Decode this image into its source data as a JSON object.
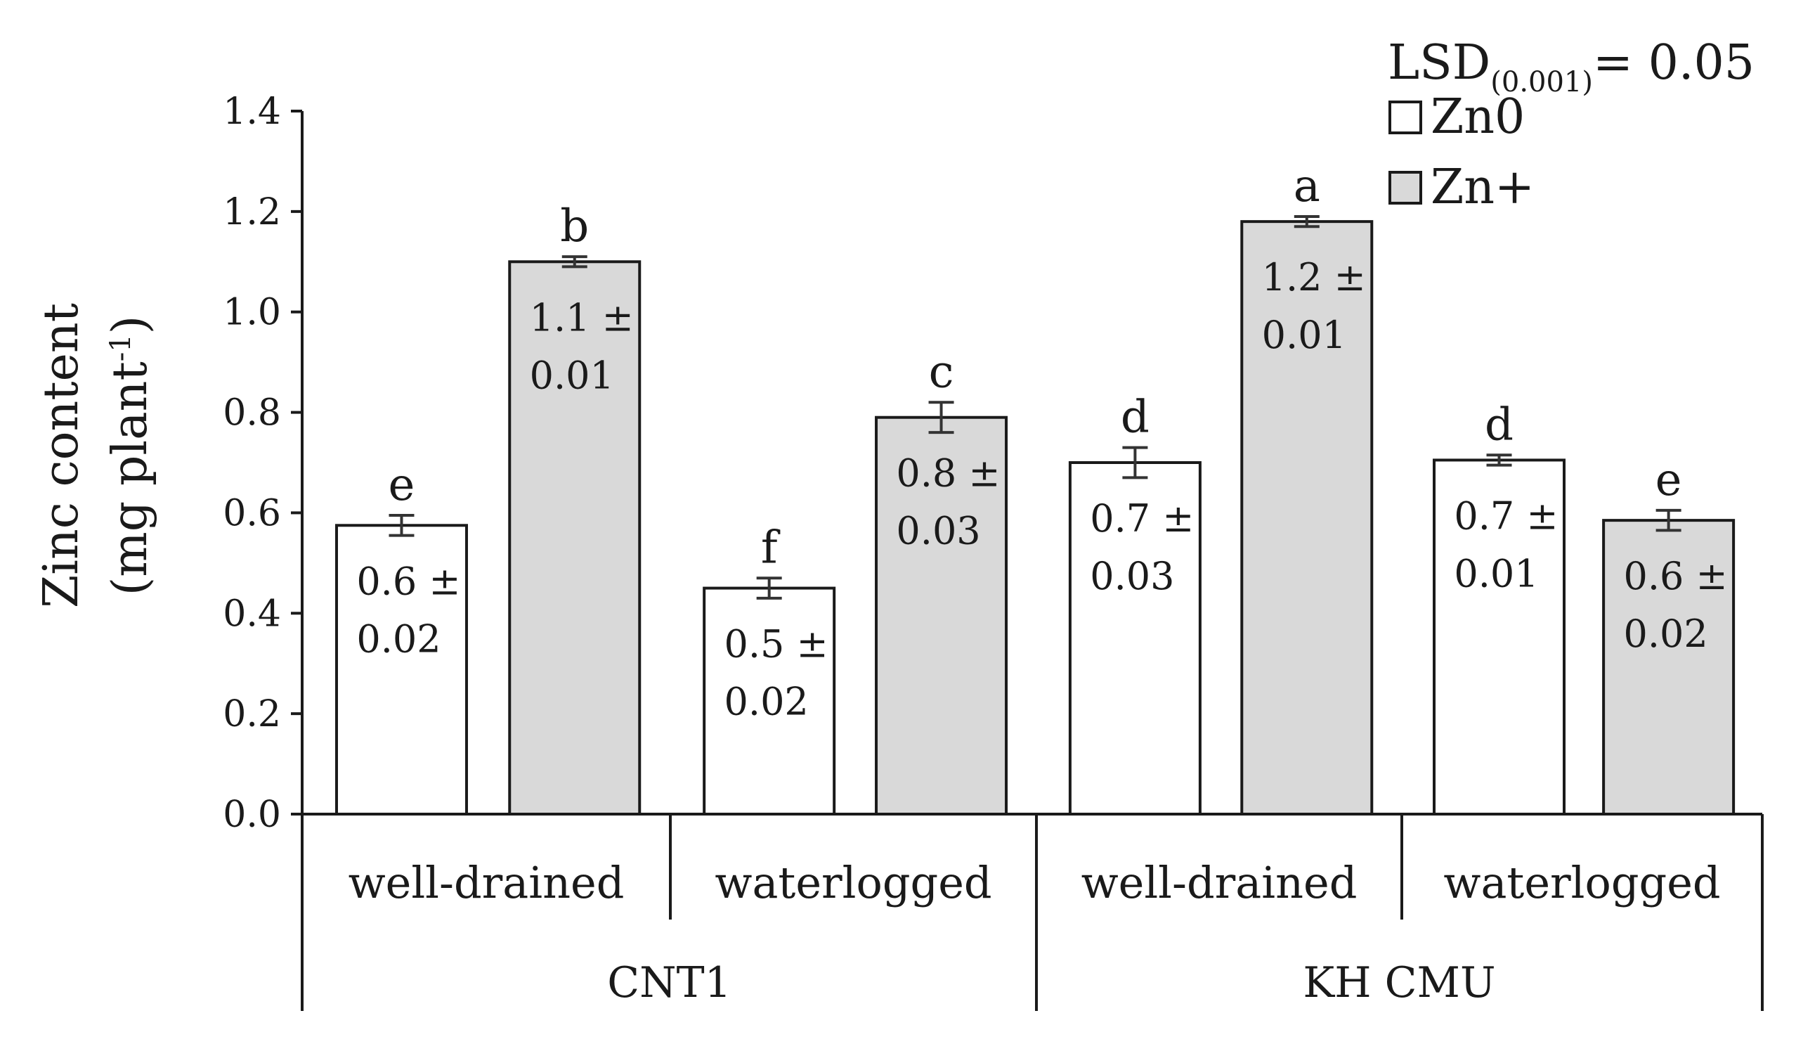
{
  "chart_data": {
    "type": "bar",
    "ylabel_line1": "Zinc content",
    "ylabel_line2_main": "(mg plant",
    "ylabel_line2_sup": "-1",
    "ylabel_line2_end": ")",
    "ylim": [
      0,
      1.4
    ],
    "yticks": [
      "0.0",
      "0.2",
      "0.4",
      "0.6",
      "0.8",
      "1.0",
      "1.2",
      "1.4"
    ],
    "groups": [
      {
        "name": "CNT1",
        "conditions": [
          "well-drained",
          "waterlogged"
        ]
      },
      {
        "name": "KH CMU",
        "conditions": [
          "well-drained",
          "waterlogged"
        ]
      }
    ],
    "series": [
      {
        "name": "Zn0",
        "color": "#ffffff"
      },
      {
        "name": "Zn+",
        "color": "#d9d9d9"
      }
    ],
    "bars": [
      {
        "group": "CNT1",
        "condition": "well-drained",
        "series": "Zn0",
        "value": 0.575,
        "error": 0.02,
        "letter": "e",
        "label_line1": "0.6 ±",
        "label_line2": "0.02"
      },
      {
        "group": "CNT1",
        "condition": "well-drained",
        "series": "Zn+",
        "value": 1.1,
        "error": 0.01,
        "letter": "b",
        "label_line1": "1.1 ±",
        "label_line2": "0.01"
      },
      {
        "group": "CNT1",
        "condition": "waterlogged",
        "series": "Zn0",
        "value": 0.45,
        "error": 0.02,
        "letter": "f",
        "label_line1": "0.5 ±",
        "label_line2": "0.02"
      },
      {
        "group": "CNT1",
        "condition": "waterlogged",
        "series": "Zn+",
        "value": 0.79,
        "error": 0.03,
        "letter": "c",
        "label_line1": "0.8 ±",
        "label_line2": "0.03"
      },
      {
        "group": "KH CMU",
        "condition": "well-drained",
        "series": "Zn0",
        "value": 0.7,
        "error": 0.03,
        "letter": "d",
        "label_line1": "0.7 ±",
        "label_line2": "0.03"
      },
      {
        "group": "KH CMU",
        "condition": "well-drained",
        "series": "Zn+",
        "value": 1.18,
        "error": 0.01,
        "letter": "a",
        "label_line1": "1.2 ±",
        "label_line2": "0.01"
      },
      {
        "group": "KH CMU",
        "condition": "waterlogged",
        "series": "Zn0",
        "value": 0.705,
        "error": 0.01,
        "letter": "d",
        "label_line1": "0.7 ±",
        "label_line2": "0.01"
      },
      {
        "group": "KH CMU",
        "condition": "waterlogged",
        "series": "Zn+",
        "value": 0.585,
        "error": 0.02,
        "letter": "e",
        "label_line1": "0.6 ±",
        "label_line2": "0.02"
      }
    ],
    "lsd": {
      "prefix": "LSD",
      "subscript": "(0.001)",
      "suffix": "= 0.05"
    },
    "legend_position": "top-right"
  }
}
